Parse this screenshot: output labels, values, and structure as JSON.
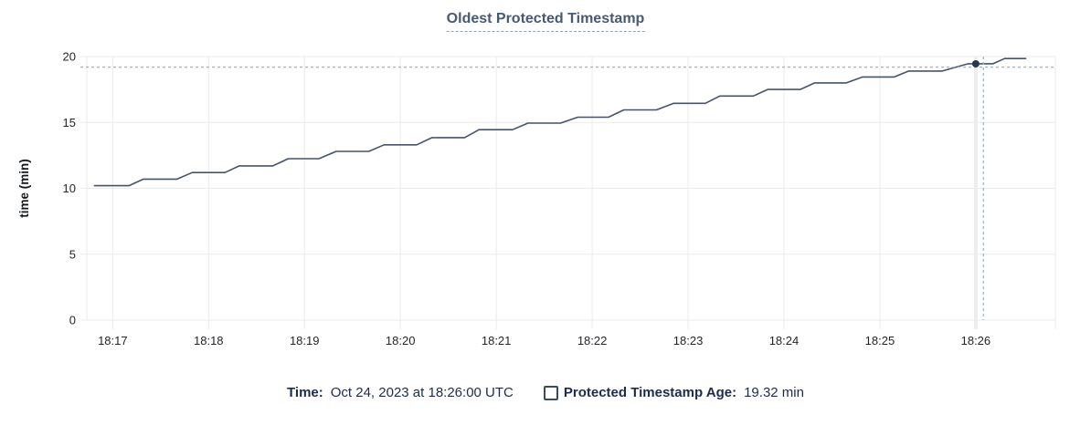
{
  "header": {
    "title": "Oldest Protected Timestamp"
  },
  "colors": {
    "title_text": "#475a73",
    "title_underline": "#93a0b2",
    "series_line": "#46536d",
    "hover_dot": "#273750",
    "crosshair": "#a4b6c5",
    "gridline": "#ebebeb",
    "gridline_highlight": "#ededed",
    "tick_text": "#21262b",
    "axis_title_text": "#15181b",
    "legend_text": "#1c2c4e",
    "checkbox_border": "#3b4a63"
  },
  "chart_data": {
    "type": "line",
    "title": "Oldest Protected Timestamp",
    "xlabel": "",
    "ylabel": "time (min)",
    "ylim": [
      0,
      20
    ],
    "yticks": [
      0,
      5,
      10,
      15,
      20
    ],
    "xticks": [
      "18:17",
      "18:18",
      "18:19",
      "18:20",
      "18:21",
      "18:22",
      "18:23",
      "18:24",
      "18:25",
      "18:26"
    ],
    "x_unit": "minutes after 18:17",
    "x_domain": [
      -0.27,
      9.83
    ],
    "grid": true,
    "legend_position": "bottom",
    "series": [
      {
        "name": "Protected Timestamp Age",
        "unit": "min",
        "points": [
          [
            -0.19,
            10.2
          ],
          [
            0.17,
            10.2
          ],
          [
            0.32,
            10.7
          ],
          [
            0.67,
            10.7
          ],
          [
            0.83,
            11.2
          ],
          [
            1.17,
            11.2
          ],
          [
            1.32,
            11.7
          ],
          [
            1.67,
            11.7
          ],
          [
            1.83,
            12.25
          ],
          [
            2.15,
            12.25
          ],
          [
            2.33,
            12.8
          ],
          [
            2.67,
            12.8
          ],
          [
            2.83,
            13.3
          ],
          [
            3.17,
            13.3
          ],
          [
            3.33,
            13.85
          ],
          [
            3.67,
            13.85
          ],
          [
            3.82,
            14.45
          ],
          [
            4.17,
            14.45
          ],
          [
            4.33,
            14.95
          ],
          [
            4.67,
            14.95
          ],
          [
            4.85,
            15.4
          ],
          [
            5.17,
            15.4
          ],
          [
            5.33,
            15.95
          ],
          [
            5.67,
            15.95
          ],
          [
            5.85,
            16.45
          ],
          [
            6.18,
            16.45
          ],
          [
            6.33,
            17.0
          ],
          [
            6.68,
            17.0
          ],
          [
            6.83,
            17.5
          ],
          [
            7.17,
            17.5
          ],
          [
            7.32,
            18.0
          ],
          [
            7.65,
            18.0
          ],
          [
            7.82,
            18.45
          ],
          [
            8.15,
            18.45
          ],
          [
            8.3,
            18.9
          ],
          [
            8.65,
            18.9
          ],
          [
            8.92,
            19.45
          ],
          [
            9.18,
            19.45
          ],
          [
            9.3,
            19.85
          ],
          [
            9.52,
            19.85
          ]
        ]
      }
    ],
    "hover": {
      "highlight_tick": "18:26",
      "highlight_t": 9.0,
      "crosshair_t": 9.08,
      "crosshair_value": 19.2,
      "dot_t": 9.0,
      "dot_value": 19.45,
      "reported_time": "Oct 24, 2023 at 18:26:00 UTC",
      "reported_value": 19.32,
      "reported_value_label": "19.32 min"
    }
  },
  "legend": {
    "time_label": "Time:",
    "time_value": "Oct 24, 2023 at 18:26:00 UTC",
    "series_label": "Protected Timestamp Age:",
    "series_value": "19.32 min"
  }
}
